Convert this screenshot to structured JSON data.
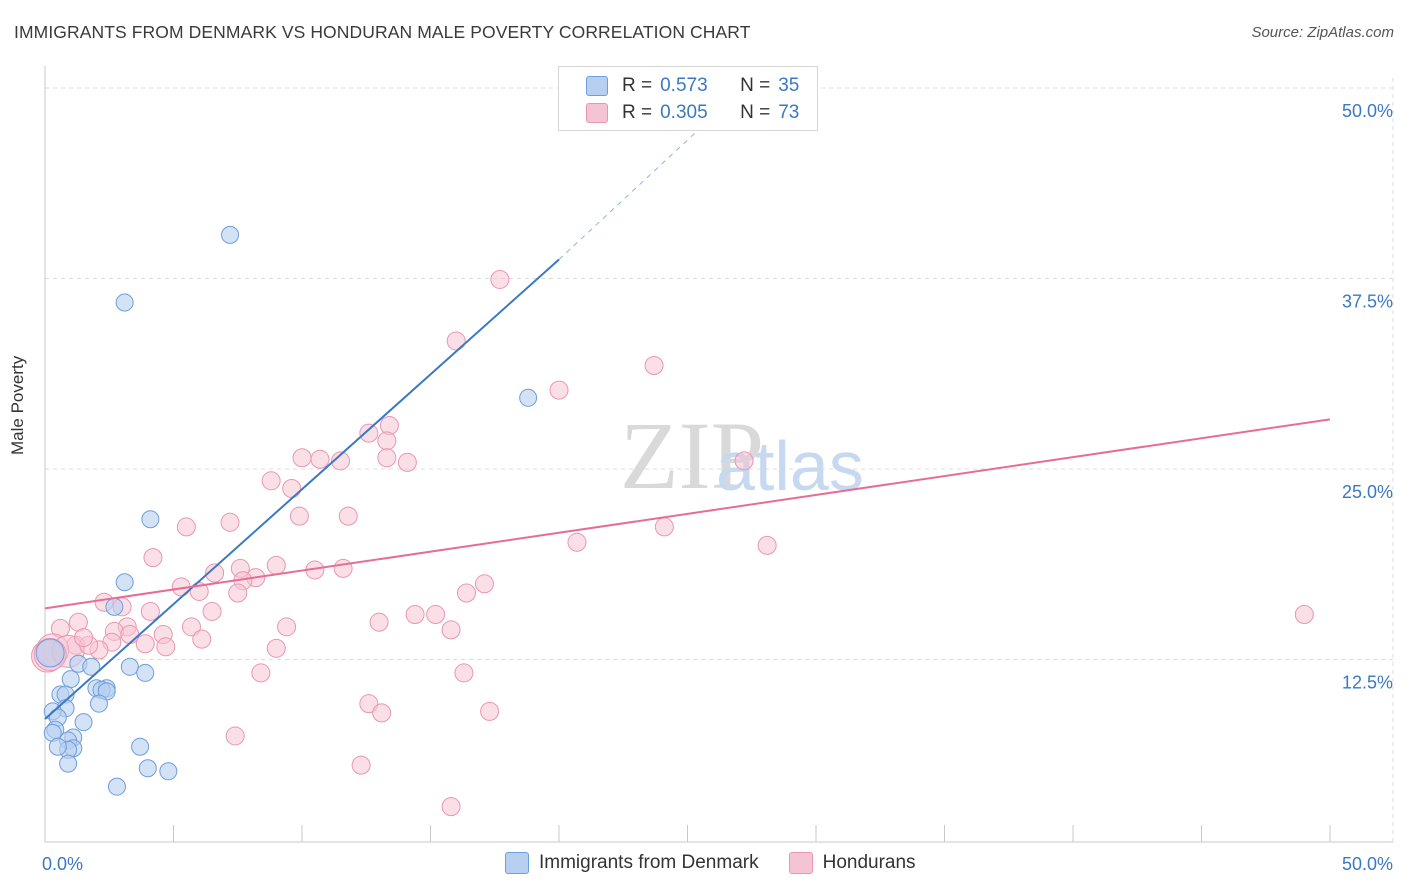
{
  "title": "IMMIGRANTS FROM DENMARK VS HONDURAN MALE POVERTY CORRELATION CHART",
  "source": "Source: ZipAtlas.com",
  "watermark": {
    "zip": "ZIP",
    "atlas": "atlas"
  },
  "colors": {
    "blue": "#3b78c4",
    "blue_fill": "#b7cff0",
    "pink": "#e66d96",
    "pink_fill": "#f5c4d4",
    "grid": "#d9d9d9",
    "value_text": "#3b78c4"
  },
  "legend": {
    "r_label": "R =",
    "n_label": "N =",
    "rows": [
      {
        "name": "Immigrants from Denmark",
        "r": "0.573",
        "n": "35",
        "color": "#b7cff0",
        "stroke": "#6d9ede"
      },
      {
        "name": "Hondurans",
        "r": "0.305",
        "n": "73",
        "color": "#f5c4d4",
        "stroke": "#e996b3"
      }
    ]
  },
  "chart_data": {
    "type": "scatter",
    "title": "IMMIGRANTS FROM DENMARK VS HONDURAN MALE POVERTY CORRELATION CHART",
    "xlabel": "",
    "ylabel": "Male Poverty",
    "xlim": [
      0,
      50
    ],
    "ylim": [
      0,
      50
    ],
    "x_tick_labels": [
      "0.0%",
      "50.0%"
    ],
    "y_tick_labels": [
      "12.5%",
      "25.0%",
      "37.5%",
      "50.0%"
    ],
    "y_ticks": [
      12.5,
      25.0,
      37.5,
      50.0
    ],
    "x_ticks": [
      0,
      5,
      10,
      15,
      20,
      25,
      30,
      35,
      40,
      45,
      50
    ],
    "grid": true,
    "series": [
      {
        "name": "Immigrants from Denmark",
        "color": "#3b78c4",
        "points": [
          [
            7.2,
            39.5
          ],
          [
            3.1,
            35.1
          ],
          [
            18.8,
            28.9
          ],
          [
            4.1,
            21.0
          ],
          [
            3.1,
            16.9
          ],
          [
            2.7,
            15.3
          ],
          [
            1.3,
            11.6
          ],
          [
            1.8,
            11.4
          ],
          [
            3.3,
            11.4
          ],
          [
            3.9,
            11.0
          ],
          [
            1.0,
            10.6
          ],
          [
            2.0,
            10.0
          ],
          [
            2.4,
            10.0
          ],
          [
            2.2,
            9.9
          ],
          [
            2.4,
            9.8
          ],
          [
            0.6,
            9.6
          ],
          [
            0.8,
            9.6
          ],
          [
            2.1,
            9.0
          ],
          [
            0.8,
            8.7
          ],
          [
            0.3,
            8.5
          ],
          [
            0.5,
            8.1
          ],
          [
            1.5,
            7.8
          ],
          [
            0.4,
            7.3
          ],
          [
            0.3,
            7.1
          ],
          [
            1.1,
            6.8
          ],
          [
            0.9,
            6.6
          ],
          [
            1.1,
            6.1
          ],
          [
            0.9,
            6.0
          ],
          [
            3.7,
            6.2
          ],
          [
            0.5,
            6.2
          ],
          [
            4.0,
            4.8
          ],
          [
            4.8,
            4.6
          ],
          [
            0.9,
            5.1
          ],
          [
            2.8,
            3.6
          ],
          [
            0.2,
            12.3
          ]
        ],
        "trend": {
          "x": [
            0,
            20
          ],
          "y": [
            8.0,
            37.9
          ],
          "dash_to": [
            26.5,
            48.0
          ]
        }
      },
      {
        "name": "Hondurans",
        "color": "#e66d96",
        "points": [
          [
            17.7,
            36.6
          ],
          [
            16.0,
            32.6
          ],
          [
            23.7,
            31.0
          ],
          [
            20.0,
            29.4
          ],
          [
            13.4,
            27.1
          ],
          [
            12.6,
            26.6
          ],
          [
            13.3,
            26.1
          ],
          [
            13.3,
            25.0
          ],
          [
            14.1,
            24.7
          ],
          [
            10.0,
            25.0
          ],
          [
            10.7,
            24.9
          ],
          [
            11.5,
            24.8
          ],
          [
            27.2,
            24.8
          ],
          [
            8.8,
            23.5
          ],
          [
            9.6,
            23.0
          ],
          [
            9.9,
            21.2
          ],
          [
            11.8,
            21.2
          ],
          [
            7.2,
            20.8
          ],
          [
            5.5,
            20.5
          ],
          [
            24.1,
            20.5
          ],
          [
            20.7,
            19.5
          ],
          [
            28.1,
            19.3
          ],
          [
            4.2,
            18.5
          ],
          [
            9.0,
            18.0
          ],
          [
            7.6,
            17.8
          ],
          [
            10.5,
            17.7
          ],
          [
            11.6,
            17.8
          ],
          [
            6.6,
            17.5
          ],
          [
            8.2,
            17.2
          ],
          [
            7.7,
            17.0
          ],
          [
            17.1,
            16.8
          ],
          [
            5.3,
            16.6
          ],
          [
            16.4,
            16.2
          ],
          [
            6.0,
            16.3
          ],
          [
            7.5,
            16.2
          ],
          [
            2.3,
            15.6
          ],
          [
            4.1,
            15.0
          ],
          [
            3.0,
            15.3
          ],
          [
            6.5,
            15.0
          ],
          [
            14.4,
            14.8
          ],
          [
            15.2,
            14.8
          ],
          [
            49.0,
            14.8
          ],
          [
            13.0,
            14.3
          ],
          [
            3.2,
            14.0
          ],
          [
            5.7,
            14.0
          ],
          [
            9.4,
            14.0
          ],
          [
            1.3,
            14.3
          ],
          [
            0.6,
            13.9
          ],
          [
            2.7,
            13.7
          ],
          [
            3.3,
            13.5
          ],
          [
            4.6,
            13.5
          ],
          [
            6.1,
            13.2
          ],
          [
            15.8,
            13.8
          ],
          [
            2.6,
            13.0
          ],
          [
            1.2,
            12.8
          ],
          [
            3.9,
            12.9
          ],
          [
            2.1,
            12.5
          ],
          [
            4.7,
            12.7
          ],
          [
            0.3,
            12.5
          ],
          [
            0.1,
            12.1
          ],
          [
            0.9,
            12.4
          ],
          [
            1.7,
            12.8
          ],
          [
            9.0,
            12.6
          ],
          [
            8.4,
            11.0
          ],
          [
            16.3,
            11.0
          ],
          [
            12.6,
            9.0
          ],
          [
            13.1,
            8.4
          ],
          [
            17.3,
            8.5
          ],
          [
            7.4,
            6.9
          ],
          [
            12.3,
            5.0
          ],
          [
            15.8,
            2.3
          ],
          [
            0.2,
            12.2
          ],
          [
            1.5,
            13.3
          ]
        ],
        "trend": {
          "x": [
            0,
            50
          ],
          "y": [
            15.2,
            27.5
          ]
        }
      }
    ]
  }
}
